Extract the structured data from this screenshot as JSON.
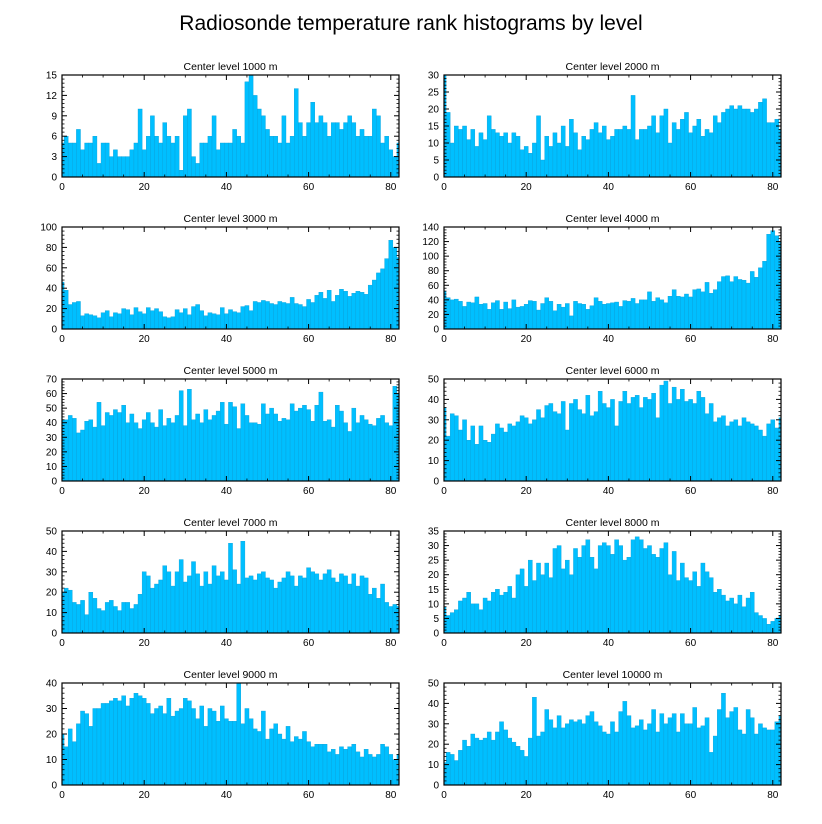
{
  "title": "Radiosonde temperature rank histograms by level",
  "colors": {
    "bar": "#00BFFF",
    "bar_edge": "#0AA0D8",
    "axis": "#000000"
  },
  "chart_data": [
    {
      "type": "bar",
      "title": "Center level 1000 m",
      "xlim": [
        0,
        82
      ],
      "ylim": [
        0,
        15
      ],
      "xticks": [
        0,
        20,
        40,
        60,
        80
      ],
      "yticks": [
        0,
        3,
        6,
        9,
        12,
        15
      ],
      "values": [
        5,
        6,
        5,
        5,
        7,
        4,
        5,
        5,
        6,
        2,
        5,
        5,
        3,
        4,
        3,
        3,
        3,
        4,
        5,
        10,
        4,
        6,
        9,
        6,
        5,
        8,
        6,
        5,
        6,
        1,
        9,
        10,
        3,
        2,
        5,
        5,
        6,
        9,
        4,
        5,
        5,
        5,
        7,
        6,
        5,
        14,
        15,
        12,
        10,
        9,
        7,
        6,
        6,
        5,
        9,
        5,
        6,
        13,
        8,
        6,
        8,
        11,
        8,
        9,
        8,
        6,
        8,
        8,
        7,
        8,
        9,
        8,
        6,
        7,
        6,
        6,
        10,
        9,
        5,
        6,
        4,
        3,
        5
      ]
    },
    {
      "type": "bar",
      "title": "Center level 2000 m",
      "xlim": [
        0,
        82
      ],
      "ylim": [
        0,
        30
      ],
      "xticks": [
        0,
        20,
        40,
        60,
        80
      ],
      "yticks": [
        0,
        5,
        10,
        15,
        20,
        25,
        30
      ],
      "values": [
        30,
        19,
        10,
        15,
        14,
        15,
        11,
        14,
        9,
        13,
        11,
        18,
        14,
        13,
        12,
        13,
        10,
        13,
        12,
        8,
        9,
        7,
        10,
        18,
        5,
        12,
        9,
        13,
        10,
        15,
        9,
        17,
        13,
        8,
        12,
        11,
        14,
        16,
        13,
        15,
        11,
        12,
        14,
        14,
        15,
        14,
        24,
        11,
        14,
        14,
        15,
        18,
        13,
        18,
        20,
        10,
        16,
        14,
        17,
        19,
        13,
        15,
        17,
        12,
        14,
        13,
        18,
        16,
        19,
        20,
        21,
        20,
        21,
        20,
        20,
        19,
        20,
        22,
        23,
        16,
        16,
        17,
        14
      ]
    },
    {
      "type": "bar",
      "title": "Center level 3000 m",
      "xlim": [
        0,
        82
      ],
      "ylim": [
        0,
        100
      ],
      "xticks": [
        0,
        20,
        40,
        60,
        80
      ],
      "yticks": [
        0,
        20,
        40,
        60,
        80,
        100
      ],
      "values": [
        46,
        38,
        24,
        26,
        27,
        13,
        15,
        14,
        13,
        11,
        16,
        18,
        12,
        16,
        15,
        20,
        19,
        14,
        21,
        17,
        15,
        21,
        18,
        20,
        17,
        12,
        11,
        12,
        19,
        16,
        20,
        14,
        22,
        24,
        18,
        13,
        16,
        15,
        14,
        21,
        15,
        19,
        17,
        16,
        22,
        23,
        18,
        27,
        26,
        28,
        27,
        25,
        24,
        27,
        26,
        25,
        31,
        25,
        24,
        22,
        29,
        26,
        33,
        36,
        30,
        38,
        27,
        33,
        39,
        37,
        32,
        35,
        37,
        36,
        34,
        43,
        48,
        55,
        59,
        69,
        87,
        80,
        70
      ]
    },
    {
      "type": "bar",
      "title": "Center level 4000 m",
      "xlim": [
        0,
        82
      ],
      "ylim": [
        0,
        140
      ],
      "xticks": [
        0,
        20,
        40,
        60,
        80
      ],
      "yticks": [
        0,
        20,
        40,
        60,
        80,
        100,
        120,
        140
      ],
      "values": [
        52,
        43,
        40,
        41,
        38,
        31,
        37,
        36,
        44,
        34,
        35,
        27,
        36,
        39,
        27,
        37,
        28,
        40,
        30,
        31,
        34,
        39,
        38,
        26,
        35,
        43,
        38,
        25,
        34,
        30,
        35,
        18,
        38,
        35,
        34,
        27,
        32,
        43,
        38,
        34,
        35,
        36,
        37,
        31,
        39,
        38,
        42,
        35,
        40,
        40,
        51,
        38,
        43,
        40,
        36,
        45,
        54,
        45,
        44,
        48,
        44,
        54,
        55,
        51,
        64,
        49,
        54,
        65,
        72,
        73,
        65,
        72,
        68,
        67,
        63,
        79,
        71,
        84,
        93,
        130,
        135,
        128,
        120
      ]
    },
    {
      "type": "bar",
      "title": "Center level 5000 m",
      "xlim": [
        0,
        82
      ],
      "ylim": [
        0,
        70
      ],
      "xticks": [
        0,
        20,
        40,
        60,
        80
      ],
      "yticks": [
        0,
        10,
        20,
        30,
        40,
        50,
        60,
        70
      ],
      "values": [
        42,
        42,
        45,
        43,
        33,
        35,
        41,
        42,
        37,
        54,
        38,
        47,
        45,
        49,
        47,
        52,
        40,
        46,
        40,
        36,
        42,
        47,
        40,
        37,
        49,
        38,
        43,
        40,
        45,
        62,
        38,
        63,
        42,
        46,
        40,
        49,
        42,
        45,
        48,
        54,
        39,
        54,
        51,
        36,
        53,
        45,
        40,
        40,
        39,
        53,
        46,
        50,
        46,
        41,
        43,
        42,
        53,
        48,
        50,
        52,
        49,
        41,
        52,
        61,
        41,
        42,
        37,
        52,
        48,
        40,
        34,
        50,
        40,
        45,
        42,
        39,
        38,
        43,
        45,
        40,
        38,
        65,
        60
      ]
    },
    {
      "type": "bar",
      "title": "Center level 6000 m",
      "xlim": [
        0,
        82
      ],
      "ylim": [
        0,
        50
      ],
      "xticks": [
        0,
        20,
        40,
        60,
        80
      ],
      "yticks": [
        0,
        10,
        20,
        30,
        40,
        50
      ],
      "values": [
        36,
        22,
        33,
        32,
        25,
        30,
        20,
        27,
        18,
        27,
        20,
        19,
        23,
        28,
        26,
        24,
        28,
        27,
        29,
        32,
        31,
        28,
        30,
        35,
        31,
        37,
        38,
        34,
        33,
        39,
        25,
        38,
        40,
        35,
        33,
        42,
        32,
        34,
        44,
        38,
        36,
        40,
        27,
        39,
        44,
        38,
        41,
        42,
        36,
        41,
        40,
        43,
        31,
        47,
        49,
        38,
        46,
        40,
        45,
        39,
        40,
        38,
        44,
        41,
        33,
        38,
        29,
        31,
        32,
        27,
        29,
        30,
        27,
        31,
        29,
        28,
        27,
        25,
        22,
        28,
        30,
        26,
        31
      ]
    },
    {
      "type": "bar",
      "title": "Center level 7000 m",
      "xlim": [
        0,
        82
      ],
      "ylim": [
        0,
        50
      ],
      "xticks": [
        0,
        20,
        40,
        60,
        80
      ],
      "yticks": [
        0,
        10,
        20,
        30,
        40,
        50
      ],
      "values": [
        20,
        22,
        21,
        15,
        14,
        16,
        9,
        20,
        17,
        12,
        11,
        15,
        16,
        13,
        11,
        15,
        15,
        12,
        14,
        19,
        30,
        28,
        22,
        24,
        26,
        33,
        30,
        23,
        30,
        36,
        25,
        28,
        35,
        29,
        23,
        30,
        24,
        33,
        28,
        30,
        26,
        44,
        31,
        24,
        45,
        27,
        28,
        26,
        29,
        30,
        27,
        26,
        22,
        25,
        27,
        30,
        28,
        23,
        28,
        27,
        32,
        30,
        29,
        26,
        29,
        31,
        27,
        25,
        29,
        28,
        24,
        29,
        23,
        28,
        27,
        19,
        22,
        17,
        24,
        15,
        13,
        14,
        13
      ]
    },
    {
      "type": "bar",
      "title": "Center level 8000 m",
      "xlim": [
        0,
        82
      ],
      "ylim": [
        0,
        35
      ],
      "xticks": [
        0,
        20,
        40,
        60,
        80
      ],
      "yticks": [
        0,
        5,
        10,
        15,
        20,
        25,
        30,
        35
      ],
      "values": [
        9,
        6,
        7,
        8,
        11,
        12,
        14,
        10,
        10,
        8,
        12,
        11,
        14,
        15,
        13,
        14,
        16,
        12,
        20,
        22,
        16,
        25,
        18,
        24,
        20,
        24,
        19,
        29,
        30,
        22,
        25,
        20,
        29,
        26,
        30,
        32,
        26,
        22,
        30,
        31,
        30,
        27,
        32,
        30,
        25,
        26,
        32,
        33,
        32,
        29,
        30,
        27,
        26,
        29,
        31,
        20,
        28,
        18,
        24,
        19,
        18,
        21,
        16,
        24,
        21,
        19,
        14,
        15,
        13,
        11,
        12,
        10,
        13,
        9,
        12,
        14,
        7,
        6,
        5,
        3,
        4,
        5,
        6
      ]
    },
    {
      "type": "bar",
      "title": "Center level 9000 m",
      "xlim": [
        0,
        82
      ],
      "ylim": [
        0,
        40
      ],
      "xticks": [
        0,
        20,
        40,
        60,
        80
      ],
      "yticks": [
        0,
        10,
        20,
        30,
        40
      ],
      "values": [
        20,
        15,
        22,
        17,
        24,
        29,
        28,
        23,
        30,
        30,
        32,
        32,
        33,
        34,
        33,
        35,
        31,
        34,
        36,
        35,
        34,
        32,
        28,
        30,
        31,
        28,
        34,
        27,
        29,
        30,
        34,
        33,
        30,
        26,
        31,
        23,
        30,
        29,
        25,
        31,
        26,
        25,
        25,
        40,
        24,
        30,
        26,
        22,
        21,
        29,
        18,
        22,
        24,
        20,
        18,
        23,
        17,
        19,
        18,
        21,
        17,
        15,
        16,
        16,
        16,
        13,
        14,
        12,
        15,
        14,
        15,
        16,
        13,
        11,
        14,
        12,
        11,
        12,
        16,
        15,
        12,
        10,
        12
      ]
    },
    {
      "type": "bar",
      "title": "Center level 10000 m",
      "xlim": [
        0,
        82
      ],
      "ylim": [
        0,
        50
      ],
      "xticks": [
        0,
        20,
        40,
        60,
        80
      ],
      "yticks": [
        0,
        10,
        20,
        30,
        40,
        50
      ],
      "values": [
        11,
        16,
        15,
        12,
        17,
        22,
        19,
        25,
        23,
        22,
        23,
        26,
        22,
        26,
        31,
        27,
        23,
        21,
        19,
        17,
        14,
        23,
        43,
        24,
        26,
        37,
        32,
        28,
        34,
        28,
        30,
        32,
        31,
        32,
        30,
        34,
        36,
        31,
        29,
        26,
        25,
        31,
        26,
        36,
        41,
        34,
        28,
        29,
        32,
        27,
        30,
        37,
        26,
        35,
        30,
        33,
        35,
        26,
        35,
        30,
        30,
        38,
        28,
        29,
        33,
        16,
        24,
        37,
        45,
        33,
        36,
        38,
        27,
        25,
        37,
        33,
        25,
        30,
        28,
        27,
        27,
        31,
        34
      ]
    }
  ]
}
